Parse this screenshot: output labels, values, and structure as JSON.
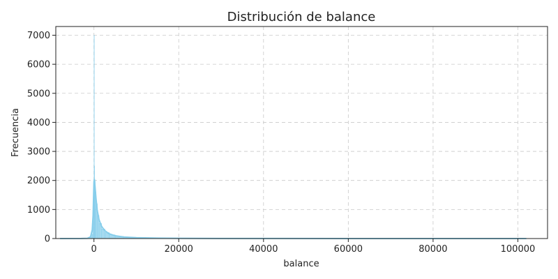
{
  "chart_data": {
    "type": "histogram",
    "title": "Distribución de balance",
    "xlabel": "balance",
    "ylabel": "Frecuencia",
    "xlim": [
      -9000,
      107000
    ],
    "ylim": [
      0,
      7300
    ],
    "xticks": [
      0,
      20000,
      40000,
      60000,
      80000,
      100000
    ],
    "yticks": [
      0,
      1000,
      2000,
      3000,
      4000,
      5000,
      6000,
      7000
    ],
    "grid": true,
    "color": "#87ceeb",
    "bins": [
      {
        "x0": -8000,
        "x1": -1000,
        "count": 5
      },
      {
        "x0": -1000,
        "x1": -600,
        "count": 40
      },
      {
        "x0": -600,
        "x1": -300,
        "count": 150
      },
      {
        "x0": -300,
        "x1": -150,
        "count": 600
      },
      {
        "x0": -150,
        "x1": 0,
        "count": 1500
      },
      {
        "x0": 0,
        "x1": 50,
        "count": 7000
      },
      {
        "x0": 50,
        "x1": 150,
        "count": 2500
      },
      {
        "x0": 150,
        "x1": 300,
        "count": 2000
      },
      {
        "x0": 300,
        "x1": 500,
        "count": 1600
      },
      {
        "x0": 500,
        "x1": 800,
        "count": 1200
      },
      {
        "x0": 800,
        "x1": 1200,
        "count": 800
      },
      {
        "x0": 1200,
        "x1": 1800,
        "count": 520
      },
      {
        "x0": 1800,
        "x1": 2600,
        "count": 330
      },
      {
        "x0": 2600,
        "x1": 3600,
        "count": 210
      },
      {
        "x0": 3600,
        "x1": 5000,
        "count": 130
      },
      {
        "x0": 5000,
        "x1": 7000,
        "count": 80
      },
      {
        "x0": 7000,
        "x1": 10000,
        "count": 45
      },
      {
        "x0": 10000,
        "x1": 15000,
        "count": 22
      },
      {
        "x0": 15000,
        "x1": 25000,
        "count": 10
      },
      {
        "x0": 25000,
        "x1": 40000,
        "count": 4
      },
      {
        "x0": 40000,
        "x1": 60000,
        "count": 2
      },
      {
        "x0": 60000,
        "x1": 80000,
        "count": 1
      },
      {
        "x0": 80000,
        "x1": 102000,
        "count": 1
      }
    ],
    "kde": [
      [
        -8000,
        0
      ],
      [
        -3000,
        2
      ],
      [
        -1500,
        10
      ],
      [
        -800,
        60
      ],
      [
        -400,
        300
      ],
      [
        -200,
        800
      ],
      [
        -100,
        1400
      ],
      [
        0,
        1950
      ],
      [
        100,
        2050
      ],
      [
        250,
        1800
      ],
      [
        500,
        1350
      ],
      [
        800,
        950
      ],
      [
        1200,
        650
      ],
      [
        1800,
        420
      ],
      [
        2500,
        280
      ],
      [
        3500,
        170
      ],
      [
        5000,
        95
      ],
      [
        7000,
        55
      ],
      [
        10000,
        30
      ],
      [
        15000,
        15
      ],
      [
        20000,
        8
      ],
      [
        30000,
        4
      ],
      [
        45000,
        2
      ],
      [
        60000,
        1
      ],
      [
        80000,
        0.5
      ],
      [
        102000,
        0
      ]
    ]
  }
}
